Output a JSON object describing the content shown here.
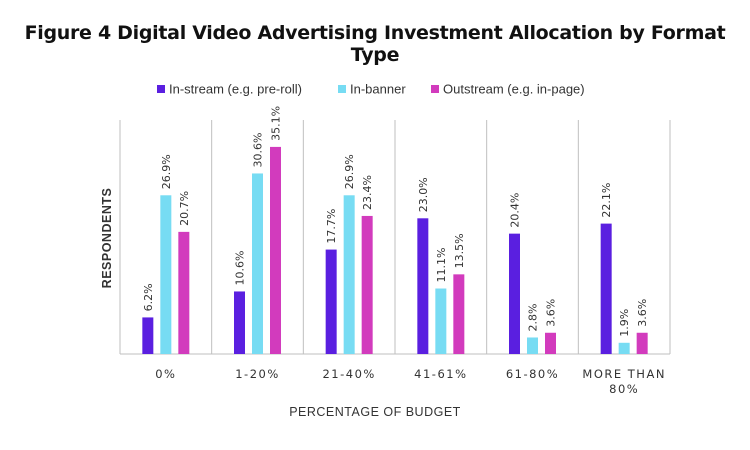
{
  "colors": {
    "instream": "#5a1fe0",
    "inbanner": "#77dcf3",
    "outstream": "#d23bbd",
    "grid": "#bfbfbf"
  },
  "chart_data": {
    "type": "bar",
    "title": "Figure 4 Digital Video Advertising Investment Allocation by Format Type",
    "xlabel": "PERCENTAGE OF BUDGET",
    "ylabel": "RESPONDENTS",
    "categories": [
      "0%",
      "1-20%",
      "21-40%",
      "41-61%",
      "61-80%",
      "MORE THAN 80%"
    ],
    "category_lines": [
      [
        "0%"
      ],
      [
        "1-20%"
      ],
      [
        "21-40%"
      ],
      [
        "41-61%"
      ],
      [
        "61-80%"
      ],
      [
        "MORE THAN",
        "80%"
      ]
    ],
    "series": [
      {
        "name": "In-stream (e.g. pre-roll)",
        "values": [
          6.2,
          10.6,
          17.7,
          23.0,
          20.4,
          22.1
        ],
        "labels": [
          "6.2%",
          "10.6%",
          "17.7%",
          "23.0%",
          "20.4%",
          "22.1%"
        ]
      },
      {
        "name": "In-banner",
        "values": [
          26.9,
          30.6,
          26.9,
          11.1,
          2.8,
          1.9
        ],
        "labels": [
          "26.9%",
          "30.6%",
          "26.9%",
          "11.1%",
          "2.8%",
          "1.9%"
        ]
      },
      {
        "name": "Outstream (e.g. in-page)",
        "values": [
          20.7,
          35.1,
          23.4,
          13.5,
          3.6,
          3.6
        ],
        "labels": [
          "20.7%",
          "35.1%",
          "23.4%",
          "13.5%",
          "3.6%",
          "3.6%"
        ]
      }
    ],
    "ylim": [
      0,
      40
    ],
    "grid": "vertical separators between categories",
    "legend_position": "top"
  }
}
